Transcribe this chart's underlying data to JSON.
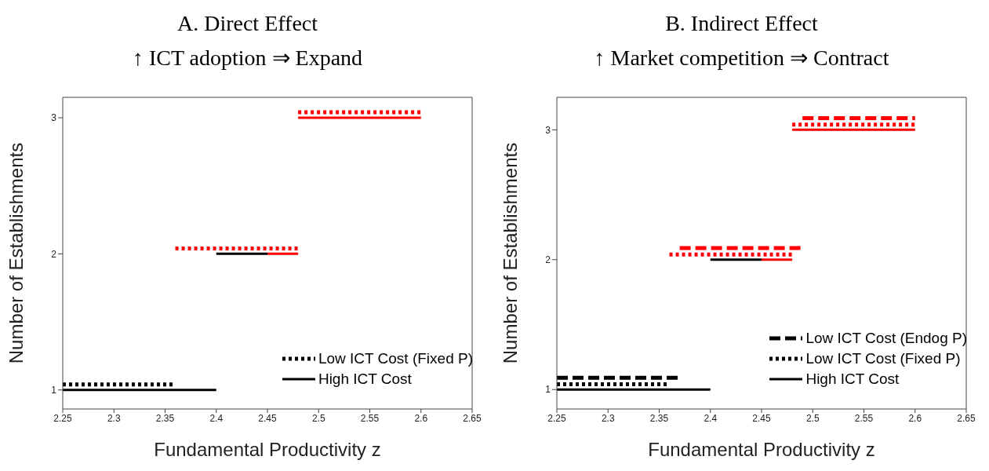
{
  "chart_data": [
    {
      "type": "line",
      "title": "A. Direct Effect",
      "subtitle": "↑ ICT adoption ⇒ Expand",
      "xlabel": "Fundamental Productivity z",
      "ylabel": "Number of Establishments",
      "xlim": [
        2.25,
        2.65
      ],
      "xticks": [
        2.25,
        2.3,
        2.35,
        2.4,
        2.45,
        2.5,
        2.55,
        2.6,
        2.65
      ],
      "ylim": [
        0.86,
        3.15
      ],
      "yticks": [
        1,
        2,
        3
      ],
      "grid": false,
      "legend": "bottom right",
      "marker": "none",
      "series": [
        {
          "name": "Low ICT Cost (Fixed P)",
          "color": "#000000",
          "line_style": "dotted",
          "x": [
            2.25,
            2.36
          ],
          "values": [
            1.04,
            1.04
          ]
        },
        {
          "color": "#ff0000",
          "line_style": "dotted",
          "x": [
            2.36,
            2.48
          ],
          "values": [
            2.04,
            2.04
          ]
        },
        {
          "color": "#ff0000",
          "line_style": "dotted",
          "x": [
            2.48,
            2.6
          ],
          "values": [
            3.04,
            3.04
          ]
        },
        {
          "name": "High ICT Cost",
          "color": "#000000",
          "line_style": "solid",
          "x": [
            2.25,
            2.4
          ],
          "values": [
            1,
            1
          ]
        },
        {
          "color": "#000000",
          "line_style": "solid",
          "x": [
            2.4,
            2.45
          ],
          "values": [
            2,
            2
          ]
        },
        {
          "color": "#ff0000",
          "line_style": "solid",
          "x": [
            2.45,
            2.48
          ],
          "values": [
            2,
            2
          ]
        },
        {
          "color": "#ff0000",
          "line_style": "solid",
          "x": [
            2.48,
            2.6
          ],
          "values": [
            3,
            3
          ]
        }
      ]
    },
    {
      "type": "line",
      "title": "B. Indirect Effect",
      "subtitle": "↑ Market competition ⇒ Contract",
      "xlabel": "Fundamental Productivity z",
      "ylabel": "Number of Establishments",
      "xlim": [
        2.25,
        2.65
      ],
      "xticks": [
        2.25,
        2.3,
        2.35,
        2.4,
        2.45,
        2.5,
        2.55,
        2.6,
        2.65
      ],
      "ylim": [
        0.85,
        3.25
      ],
      "yticks": [
        1,
        2,
        3
      ],
      "grid": false,
      "legend": "bottom right",
      "marker": "none",
      "series": [
        {
          "name": "Low ICT Cost (Endog P)",
          "color": "#000000",
          "line_style": "dashed",
          "x": [
            2.25,
            2.37
          ],
          "values": [
            1.09,
            1.09
          ]
        },
        {
          "color": "#ff0000",
          "line_style": "dashed",
          "x": [
            2.37,
            2.49
          ],
          "values": [
            2.09,
            2.09
          ]
        },
        {
          "color": "#ff0000",
          "line_style": "dashed",
          "x": [
            2.49,
            2.6
          ],
          "values": [
            3.09,
            3.09
          ]
        },
        {
          "name": "Low ICT Cost (Fixed P)",
          "color": "#000000",
          "line_style": "dotted",
          "x": [
            2.25,
            2.36
          ],
          "values": [
            1.04,
            1.04
          ]
        },
        {
          "color": "#ff0000",
          "line_style": "dotted",
          "x": [
            2.36,
            2.48
          ],
          "values": [
            2.04,
            2.04
          ]
        },
        {
          "color": "#ff0000",
          "line_style": "dotted",
          "x": [
            2.48,
            2.6
          ],
          "values": [
            3.04,
            3.04
          ]
        },
        {
          "name": "High ICT Cost",
          "color": "#000000",
          "line_style": "solid",
          "x": [
            2.25,
            2.4
          ],
          "values": [
            1,
            1
          ]
        },
        {
          "color": "#000000",
          "line_style": "solid",
          "x": [
            2.4,
            2.45
          ],
          "values": [
            2,
            2
          ]
        },
        {
          "color": "#ff0000",
          "line_style": "solid",
          "x": [
            2.45,
            2.48
          ],
          "values": [
            2,
            2
          ]
        },
        {
          "color": "#ff0000",
          "line_style": "solid",
          "x": [
            2.48,
            2.6
          ],
          "values": [
            3,
            3
          ]
        }
      ]
    }
  ]
}
